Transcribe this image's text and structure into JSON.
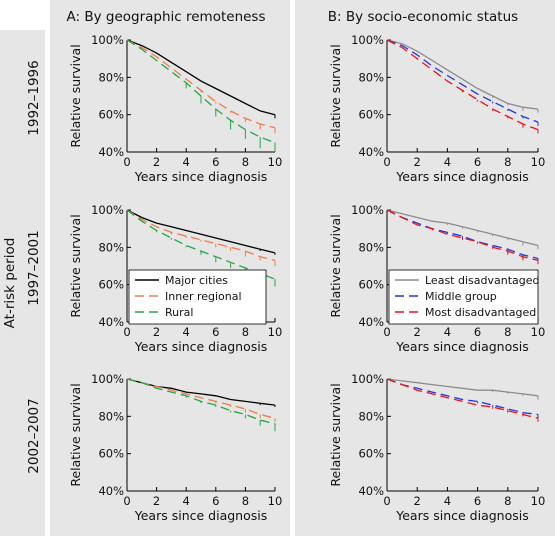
{
  "column_headers": {
    "A": "A: By geographic remoteness",
    "B": "B: By socio-economic status"
  },
  "row_group_label": "At-risk period",
  "row_labels": [
    "1992–1996",
    "1997–2001",
    "2002–2007"
  ],
  "axes": {
    "xlabel": "Years since diagnosis",
    "ylabel": "Relative survival",
    "x_ticks": [
      "0",
      "2",
      "4",
      "6",
      "8",
      "10"
    ],
    "y_ticks": [
      "40%",
      "60%",
      "80%",
      "100%"
    ]
  },
  "legends": {
    "A": [
      "Major cities",
      "Inner regional",
      "Rural"
    ],
    "B": [
      "Least disadvantaged",
      "Middle group",
      "Most disadvantaged"
    ]
  },
  "colors": {
    "panel_bg": "#e6e6e6",
    "geo": [
      "#000000",
      "#f07a4a",
      "#22a845"
    ],
    "ses": [
      "#8c8c8c",
      "#1f35e0",
      "#e8141a"
    ]
  },
  "chart_data": [
    {
      "panel": "A-1992–1996",
      "type": "line",
      "xlim": [
        0,
        10
      ],
      "ylim": [
        40,
        100
      ],
      "x": [
        0,
        1,
        2,
        3,
        4,
        5,
        6,
        7,
        8,
        9,
        10
      ],
      "series": [
        {
          "name": "Major cities",
          "values": [
            100,
            97,
            93,
            88,
            83,
            78,
            74,
            70,
            66,
            62,
            60
          ],
          "error_low": [
            100,
            97,
            93,
            88,
            83,
            78,
            74,
            70,
            66,
            62,
            58
          ]
        },
        {
          "name": "Inner regional",
          "values": [
            100,
            96,
            91,
            85,
            79,
            73,
            67,
            62,
            58,
            55,
            53
          ],
          "error_low": [
            100,
            96,
            91,
            85,
            79,
            72,
            66,
            61,
            56,
            52,
            50
          ]
        },
        {
          "name": "Rural",
          "values": [
            100,
            95,
            89,
            83,
            77,
            70,
            63,
            57,
            52,
            48,
            45
          ],
          "error_low": [
            100,
            95,
            89,
            83,
            74,
            66,
            59,
            52,
            47,
            42,
            40
          ]
        }
      ]
    },
    {
      "panel": "B-1992–1996",
      "type": "line",
      "xlim": [
        0,
        10
      ],
      "ylim": [
        40,
        100
      ],
      "x": [
        0,
        1,
        2,
        3,
        4,
        5,
        6,
        7,
        8,
        9,
        10
      ],
      "series": [
        {
          "name": "Least disadvantaged",
          "values": [
            100,
            98,
            94,
            89,
            84,
            79,
            74,
            70,
            66,
            64,
            63
          ],
          "error_low": [
            100,
            98,
            94,
            89,
            84,
            79,
            74,
            69,
            65,
            62,
            61
          ]
        },
        {
          "name": "Middle group",
          "values": [
            100,
            97,
            92,
            86,
            81,
            76,
            71,
            67,
            63,
            59,
            56
          ],
          "error_low": [
            100,
            97,
            92,
            86,
            81,
            76,
            71,
            66,
            62,
            58,
            54
          ]
        },
        {
          "name": "Most disadvantaged",
          "values": [
            100,
            96,
            90,
            84,
            78,
            73,
            68,
            63,
            59,
            55,
            52
          ],
          "error_low": [
            100,
            96,
            90,
            84,
            78,
            72,
            67,
            62,
            58,
            53,
            50
          ]
        }
      ]
    },
    {
      "panel": "A-1997–2001",
      "type": "line",
      "xlim": [
        0,
        10
      ],
      "ylim": [
        40,
        100
      ],
      "x": [
        0,
        1,
        2,
        3,
        4,
        5,
        6,
        7,
        8,
        9,
        10
      ],
      "series": [
        {
          "name": "Major cities",
          "values": [
            100,
            96,
            93,
            91,
            89,
            87,
            85,
            83,
            81,
            79,
            77
          ],
          "error_low": [
            100,
            96,
            93,
            91,
            89,
            87,
            85,
            83,
            81,
            78,
            76
          ]
        },
        {
          "name": "Inner regional",
          "values": [
            100,
            95,
            91,
            88,
            86,
            84,
            82,
            80,
            78,
            75,
            73
          ],
          "error_low": [
            100,
            95,
            91,
            87,
            85,
            83,
            80,
            78,
            75,
            73,
            70
          ]
        },
        {
          "name": "Rural",
          "values": [
            100,
            94,
            89,
            85,
            81,
            78,
            75,
            72,
            69,
            66,
            63
          ],
          "error_low": [
            100,
            94,
            88,
            84,
            80,
            76,
            72,
            69,
            66,
            62,
            59
          ]
        }
      ]
    },
    {
      "panel": "B-1997–2001",
      "type": "line",
      "xlim": [
        0,
        10
      ],
      "ylim": [
        40,
        100
      ],
      "x": [
        0,
        1,
        2,
        3,
        4,
        5,
        6,
        7,
        8,
        9,
        10
      ],
      "series": [
        {
          "name": "Least disadvantaged",
          "values": [
            100,
            98,
            96,
            94,
            93,
            91,
            89,
            87,
            85,
            83,
            81
          ],
          "error_low": [
            100,
            98,
            96,
            94,
            92,
            90,
            88,
            86,
            84,
            81,
            79
          ]
        },
        {
          "name": "Middle group",
          "values": [
            100,
            96,
            93,
            90,
            88,
            86,
            83,
            81,
            79,
            76,
            74
          ],
          "error_low": [
            100,
            96,
            93,
            90,
            87,
            85,
            82,
            80,
            77,
            74,
            72
          ]
        },
        {
          "name": "Most disadvantaged",
          "values": [
            100,
            96,
            92,
            90,
            87,
            85,
            83,
            80,
            78,
            75,
            73
          ],
          "error_low": [
            100,
            96,
            92,
            89,
            87,
            84,
            82,
            79,
            76,
            73,
            71
          ]
        }
      ]
    },
    {
      "panel": "A-2002–2007",
      "type": "line",
      "xlim": [
        0,
        10
      ],
      "ylim": [
        40,
        100
      ],
      "x": [
        0,
        1,
        2,
        3,
        4,
        5,
        6,
        7,
        8,
        9,
        10
      ],
      "series": [
        {
          "name": "Major cities",
          "values": [
            100,
            98,
            96,
            95,
            93,
            92,
            91,
            89,
            88,
            87,
            86
          ],
          "error_low": [
            100,
            98,
            96,
            95,
            93,
            92,
            91,
            89,
            88,
            86,
            85
          ]
        },
        {
          "name": "Inner regional",
          "values": [
            100,
            98,
            96,
            94,
            92,
            90,
            88,
            86,
            84,
            81,
            79
          ],
          "error_low": [
            100,
            98,
            96,
            94,
            92,
            90,
            87,
            85,
            82,
            79,
            77
          ]
        },
        {
          "name": "Rural",
          "values": [
            100,
            98,
            95,
            93,
            91,
            88,
            86,
            83,
            81,
            78,
            76
          ],
          "error_low": [
            100,
            98,
            95,
            93,
            90,
            87,
            85,
            82,
            79,
            75,
            72
          ]
        }
      ]
    },
    {
      "panel": "B-2002–2007",
      "type": "line",
      "xlim": [
        0,
        10
      ],
      "ylim": [
        40,
        100
      ],
      "x": [
        0,
        1,
        2,
        3,
        4,
        5,
        6,
        7,
        8,
        9,
        10
      ],
      "series": [
        {
          "name": "Least disadvantaged",
          "values": [
            100,
            99,
            98,
            97,
            96,
            95,
            94,
            94,
            93,
            92,
            91
          ],
          "error_low": [
            100,
            99,
            98,
            97,
            96,
            95,
            94,
            93,
            92,
            91,
            89
          ]
        },
        {
          "name": "Middle group",
          "values": [
            100,
            97,
            95,
            93,
            91,
            89,
            88,
            86,
            84,
            82,
            81
          ],
          "error_low": [
            100,
            97,
            95,
            93,
            91,
            89,
            87,
            85,
            83,
            81,
            79
          ]
        },
        {
          "name": "Most disadvantaged",
          "values": [
            100,
            97,
            94,
            92,
            90,
            88,
            86,
            85,
            83,
            81,
            79
          ],
          "error_low": [
            100,
            97,
            94,
            92,
            90,
            88,
            86,
            84,
            82,
            80,
            77
          ]
        }
      ]
    }
  ]
}
